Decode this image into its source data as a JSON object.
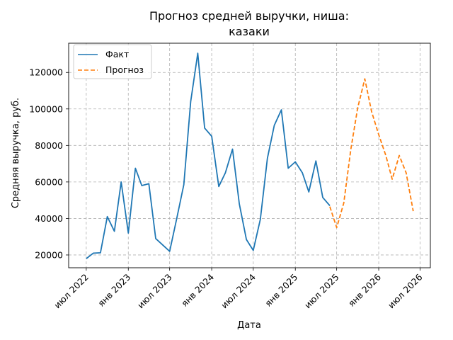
{
  "chart_data": {
    "type": "line",
    "title": [
      "Прогноз средней выручки, ниша:",
      "казаки"
    ],
    "xlabel": "Дата",
    "ylabel": "Средняя выручка, руб.",
    "x_ticks": [
      {
        "date": "2022-07-01",
        "label": "июл 2022"
      },
      {
        "date": "2023-01-01",
        "label": "янв 2023"
      },
      {
        "date": "2023-07-01",
        "label": "июл 2023"
      },
      {
        "date": "2024-01-01",
        "label": "янв 2024"
      },
      {
        "date": "2024-07-01",
        "label": "июл 2024"
      },
      {
        "date": "2025-01-01",
        "label": "янв 2025"
      },
      {
        "date": "2025-07-01",
        "label": "июл 2025"
      },
      {
        "date": "2026-01-01",
        "label": "янв 2026"
      },
      {
        "date": "2026-07-01",
        "label": "июл 2026"
      }
    ],
    "y_ticks": [
      20000,
      40000,
      60000,
      80000,
      100000,
      120000
    ],
    "y_tick_labels": [
      "20000",
      "40000",
      "60000",
      "80000",
      "100000",
      "120000"
    ],
    "xlim": [
      "2022-04-15",
      "2026-08-15"
    ],
    "ylim": [
      13000,
      136000
    ],
    "grid": true,
    "legend_position": "top-left",
    "series": [
      {
        "name": "Факт",
        "color": "#1f77b4",
        "style": "solid",
        "points": [
          {
            "x": "2022-07-01",
            "y": 18000
          },
          {
            "x": "2022-08-01",
            "y": 21000
          },
          {
            "x": "2022-09-01",
            "y": 21200
          },
          {
            "x": "2022-10-01",
            "y": 41000
          },
          {
            "x": "2022-11-01",
            "y": 33000
          },
          {
            "x": "2022-12-01",
            "y": 60000
          },
          {
            "x": "2023-01-01",
            "y": 32000
          },
          {
            "x": "2023-02-01",
            "y": 67500
          },
          {
            "x": "2023-03-01",
            "y": 58000
          },
          {
            "x": "2023-04-01",
            "y": 59000
          },
          {
            "x": "2023-05-01",
            "y": 29000
          },
          {
            "x": "2023-07-01",
            "y": 22000
          },
          {
            "x": "2023-08-01",
            "y": 40000
          },
          {
            "x": "2023-09-01",
            "y": 58500
          },
          {
            "x": "2023-10-01",
            "y": 104000
          },
          {
            "x": "2023-11-01",
            "y": 130500
          },
          {
            "x": "2023-12-01",
            "y": 89500
          },
          {
            "x": "2024-01-01",
            "y": 85000
          },
          {
            "x": "2024-02-01",
            "y": 57500
          },
          {
            "x": "2024-03-01",
            "y": 65000
          },
          {
            "x": "2024-04-01",
            "y": 78000
          },
          {
            "x": "2024-05-01",
            "y": 48000
          },
          {
            "x": "2024-06-01",
            "y": 28500
          },
          {
            "x": "2024-07-01",
            "y": 22500
          },
          {
            "x": "2024-08-01",
            "y": 39500
          },
          {
            "x": "2024-09-01",
            "y": 73000
          },
          {
            "x": "2024-10-01",
            "y": 91000
          },
          {
            "x": "2024-11-01",
            "y": 99500
          },
          {
            "x": "2024-12-01",
            "y": 67500
          },
          {
            "x": "2025-01-01",
            "y": 71000
          },
          {
            "x": "2025-02-01",
            "y": 65000
          },
          {
            "x": "2025-03-01",
            "y": 54500
          },
          {
            "x": "2025-04-01",
            "y": 71500
          },
          {
            "x": "2025-05-01",
            "y": 51500
          },
          {
            "x": "2025-06-01",
            "y": 47000
          }
        ]
      },
      {
        "name": "Прогноз",
        "color": "#ff7f0e",
        "style": "dashed",
        "points": [
          {
            "x": "2025-06-01",
            "y": 46500
          },
          {
            "x": "2025-07-01",
            "y": 35000
          },
          {
            "x": "2025-08-01",
            "y": 48500
          },
          {
            "x": "2025-09-01",
            "y": 78000
          },
          {
            "x": "2025-10-01",
            "y": 100500
          },
          {
            "x": "2025-11-01",
            "y": 116500
          },
          {
            "x": "2025-12-01",
            "y": 98500
          },
          {
            "x": "2026-01-01",
            "y": 86000
          },
          {
            "x": "2026-02-01",
            "y": 74500
          },
          {
            "x": "2026-03-01",
            "y": 61500
          },
          {
            "x": "2026-04-01",
            "y": 74500
          },
          {
            "x": "2026-05-01",
            "y": 65000
          },
          {
            "x": "2026-06-01",
            "y": 44000
          }
        ]
      }
    ]
  }
}
